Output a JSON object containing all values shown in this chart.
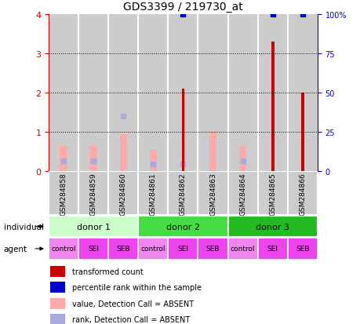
{
  "title": "GDS3399 / 219730_at",
  "samples": [
    "GSM284858",
    "GSM284859",
    "GSM284860",
    "GSM284861",
    "GSM284862",
    "GSM284863",
    "GSM284864",
    "GSM284865",
    "GSM284866"
  ],
  "transformed_count": [
    0,
    0,
    0,
    0,
    2.1,
    0,
    0,
    3.3,
    2.0
  ],
  "percentile_rank": [
    0,
    0,
    0,
    0,
    100,
    0,
    0,
    100,
    100
  ],
  "absent_value": [
    0.65,
    0.65,
    0.95,
    0.55,
    0,
    1.0,
    0.65,
    0,
    0
  ],
  "absent_rank": [
    0.27,
    0.27,
    1.4,
    0.18,
    0.18,
    0,
    0.27,
    0,
    0
  ],
  "donors": [
    {
      "label": "donor 1",
      "start": 0,
      "end": 3,
      "color": "#ccffcc"
    },
    {
      "label": "donor 2",
      "start": 3,
      "end": 6,
      "color": "#44dd44"
    },
    {
      "label": "donor 3",
      "start": 6,
      "end": 9,
      "color": "#22bb22"
    }
  ],
  "agents": [
    "control",
    "SEI",
    "SEB",
    "control",
    "SEI",
    "SEB",
    "control",
    "SEI",
    "SEB"
  ],
  "agent_colors": [
    "#ee88ee",
    "#ee44ee",
    "#ee44ee",
    "#ee88ee",
    "#ee44ee",
    "#ee44ee",
    "#ee88ee",
    "#ee44ee",
    "#ee44ee"
  ],
  "ylim_left": [
    0,
    4
  ],
  "ylim_right": [
    0,
    100
  ],
  "yticks_left": [
    0,
    1,
    2,
    3,
    4
  ],
  "yticks_right": [
    0,
    25,
    50,
    75,
    100
  ],
  "ytick_labels_right": [
    "0",
    "25",
    "50",
    "75",
    "100%"
  ],
  "bar_color_red": "#cc0000",
  "bar_color_pink": "#ffaaaa",
  "rank_absent_color": "#aaaadd",
  "percentile_color": "#0000cc",
  "sample_bg": "#cccccc",
  "legend_labels": [
    "transformed count",
    "percentile rank within the sample",
    "value, Detection Call = ABSENT",
    "rank, Detection Call = ABSENT"
  ],
  "legend_colors": [
    "#cc0000",
    "#0000cc",
    "#ffaaaa",
    "#aaaadd"
  ]
}
